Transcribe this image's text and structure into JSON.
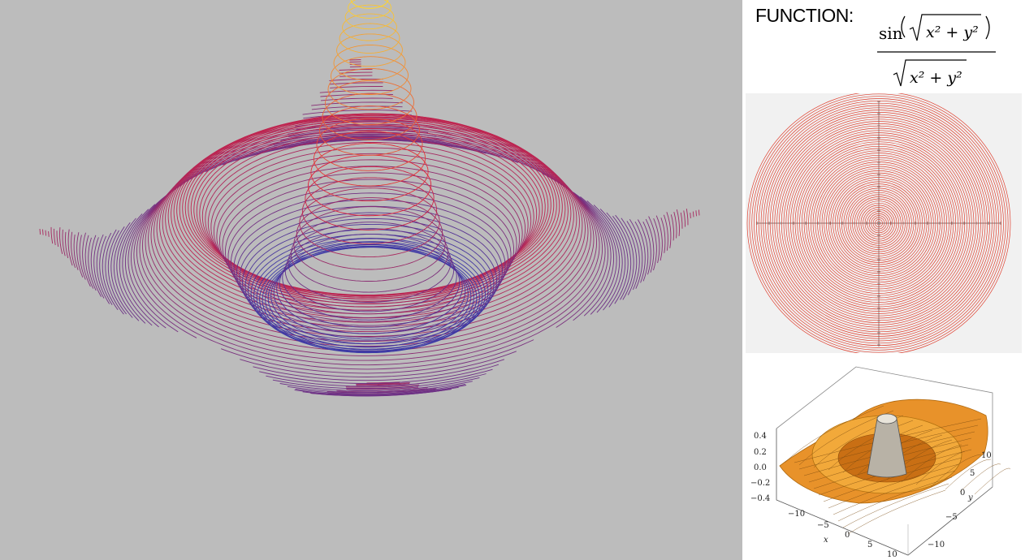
{
  "function_panel": {
    "label": "FUNCTION:",
    "numerator_fn": "sin",
    "radicand": "x² + y²"
  },
  "surface_plot": {
    "z_ticks": [
      "0.4",
      "0.2",
      "0.0",
      "−0.2",
      "−0.4"
    ],
    "x_ticks": [
      "−10",
      "−5",
      "0",
      "5",
      "10"
    ],
    "y_ticks": [
      "−10",
      "−5",
      "0",
      "5",
      "10"
    ],
    "x_label": "x",
    "y_label": "y"
  },
  "colors": {
    "background": "#bcbcbc",
    "low": "#3a3aa8",
    "mid": "#e0203a",
    "high": "#ffee33",
    "contour": "#e04030",
    "surface": "#f0a030"
  }
}
